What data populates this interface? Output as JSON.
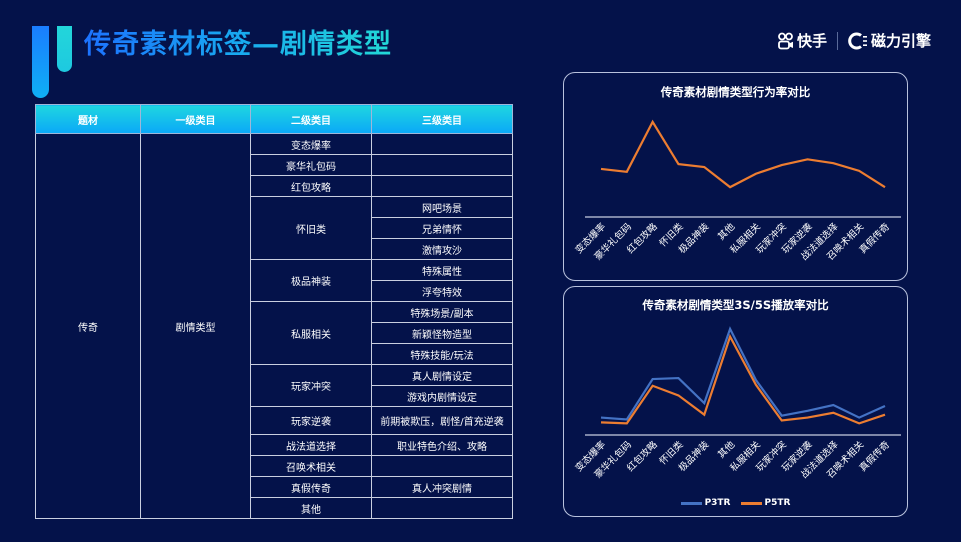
{
  "header": {
    "title": "传奇素材标签—剧情类型",
    "brand_kuaishou": "快手",
    "brand_cili": "磁力引擎"
  },
  "table": {
    "headers": [
      "题材",
      "一级类目",
      "二级类目",
      "三级类目"
    ],
    "col1": "传奇",
    "col2": "剧情类型",
    "groups": [
      {
        "level2": "变态爆率",
        "level3": [
          ""
        ]
      },
      {
        "level2": "豪华礼包码",
        "level3": [
          ""
        ]
      },
      {
        "level2": "红包攻略",
        "level3": [
          ""
        ]
      },
      {
        "level2": "怀旧类",
        "level3": [
          "网吧场景",
          "兄弟情怀",
          "激情攻沙"
        ]
      },
      {
        "level2": "极品神装",
        "level3": [
          "特殊属性",
          "浮夸特效"
        ]
      },
      {
        "level2": "私服相关",
        "level3": [
          "特殊场景/副本",
          "新颖怪物造型",
          "特殊技能/玩法"
        ]
      },
      {
        "level2": "玩家冲突",
        "level3": [
          "真人剧情设定",
          "游戏内剧情设定"
        ]
      },
      {
        "level2": "玩家逆袭",
        "level3": [
          "前期被欺压，剧怪/首充逆袭"
        ]
      },
      {
        "level2": "战法道选择",
        "level3": [
          "职业特色介绍、攻略"
        ]
      },
      {
        "level2": "召唤术相关",
        "level3": [
          ""
        ]
      },
      {
        "level2": "真假传奇",
        "level3": [
          "真人冲突剧情"
        ]
      },
      {
        "level2": "其他",
        "level3": [
          ""
        ]
      }
    ]
  },
  "colors": {
    "background": "#04124a",
    "orange": "#ed7d31",
    "blue": "#4472c4",
    "header_top": "#1fd6e0",
    "header_bottom": "#0aa8f8"
  },
  "chart_data": [
    {
      "type": "line",
      "title": "传奇素材剧情类型行为率对比",
      "categories": [
        "变态爆率",
        "豪华礼包码",
        "红包攻略",
        "怀旧类",
        "极品神装",
        "其他",
        "私服相关",
        "玩家冲突",
        "玩家逆袭",
        "战法道选择",
        "召唤术相关",
        "真假传奇"
      ],
      "series": [
        {
          "name": "行为率",
          "color": "#ed7d31",
          "values": [
            48,
            45,
            97,
            53,
            50,
            29,
            43,
            52,
            58,
            54,
            46,
            29
          ]
        }
      ],
      "xlabel": "",
      "ylabel": "",
      "ylim": [
        0,
        100
      ],
      "grid": false,
      "legend": "none",
      "y_axis_visible": false
    },
    {
      "type": "line",
      "title": "传奇素材剧情类型3S/5S播放率对比",
      "categories": [
        "变态爆率",
        "豪华礼包码",
        "红包攻略",
        "怀旧类",
        "极品神装",
        "其他",
        "私服相关",
        "玩家冲突",
        "玩家逆袭",
        "战法道选择",
        "召唤术相关",
        "真假传奇"
      ],
      "series": [
        {
          "name": "P3TR",
          "color": "#4472c4",
          "values": [
            16,
            14,
            56,
            57,
            31,
            108,
            55,
            18,
            23,
            29,
            16,
            28
          ]
        },
        {
          "name": "P5TR",
          "color": "#ed7d31",
          "values": [
            11,
            10,
            49,
            39,
            19,
            100,
            50,
            13,
            16,
            21,
            10,
            19
          ]
        }
      ],
      "xlabel": "",
      "ylabel": "",
      "ylim": [
        0,
        110
      ],
      "grid": false,
      "legend": "bottom",
      "y_axis_visible": false
    }
  ]
}
